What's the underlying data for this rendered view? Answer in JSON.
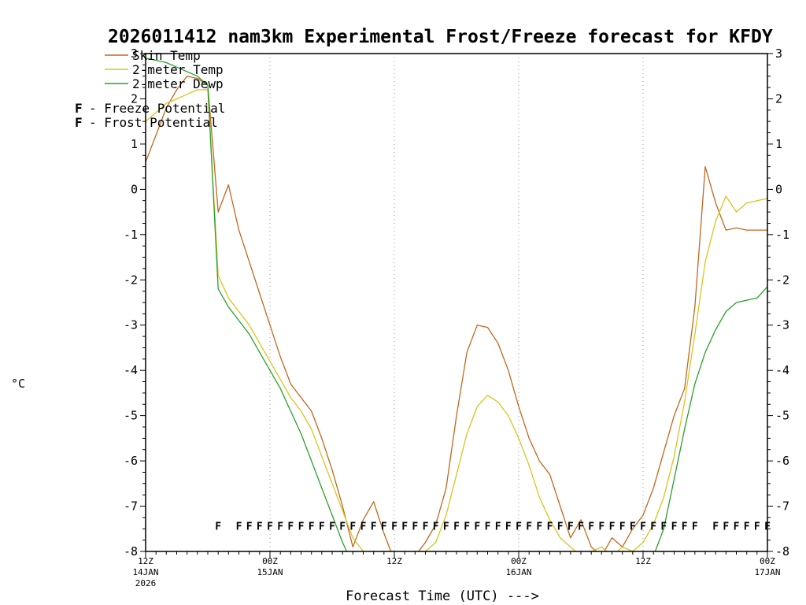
{
  "title": "2026011412 nam3km Experimental Frost/Freeze forecast for KFDY",
  "axes": {
    "y_label": "°C",
    "x_label": "Forecast Time (UTC) --->",
    "y_ticks": [
      3,
      2,
      1,
      0,
      -1,
      -2,
      -3,
      -4,
      -5,
      -6,
      -7,
      -8
    ],
    "x_major_ticks": [
      {
        "hour": 0,
        "line1": "12Z",
        "line2": "14JAN",
        "line3": "2026"
      },
      {
        "hour": 12,
        "line1": "00Z",
        "line2": "15JAN",
        "line3": ""
      },
      {
        "hour": 24,
        "line1": "12Z",
        "line2": "",
        "line3": ""
      },
      {
        "hour": 36,
        "line1": "00Z",
        "line2": "16JAN",
        "line3": ""
      },
      {
        "hour": 48,
        "line1": "12Z",
        "line2": "",
        "line3": ""
      },
      {
        "hour": 60,
        "line1": "00Z",
        "line2": "17JAN",
        "line3": ""
      }
    ]
  },
  "legend": {
    "series": [
      {
        "label": "Skin Temp",
        "color": "#c06820"
      },
      {
        "label": "2-meter Temp",
        "color": "#d9c41e"
      },
      {
        "label": "2-meter Dewp",
        "color": "#2ca02c"
      }
    ],
    "flags": [
      {
        "symbol": "F",
        "label": "- Freeze Potential",
        "color": "#d6188f"
      },
      {
        "symbol": "F",
        "label": "- Frost Potential",
        "color": "#7b68ee"
      }
    ]
  },
  "chart_data": {
    "type": "line",
    "title": "2026011412 nam3km Experimental Frost/Freeze forecast for KFDY",
    "xlabel": "Forecast Time (UTC) --->",
    "ylabel": "°C",
    "x_unit": "hours after 12Z 14JAN 2026",
    "x_range": [
      0,
      60
    ],
    "ylim": [
      -8,
      3
    ],
    "grid": "dashed vertical lines every 12 hours",
    "legend_position": "top-left inside plot",
    "series": [
      {
        "name": "Skin Temp",
        "color": "#c06820",
        "values": [
          0.6,
          1.2,
          1.8,
          2.2,
          2.5,
          2.45,
          2.3,
          -0.5,
          0.1,
          -0.9,
          -1.6,
          -2.3,
          -3.0,
          -3.7,
          -4.3,
          -4.6,
          -4.9,
          -5.5,
          -6.2,
          -7.0,
          -7.9,
          -7.3,
          -6.9,
          -7.6,
          -8.2,
          -8.3,
          -8.1,
          -7.8,
          -7.4,
          -6.6,
          -5.0,
          -3.6,
          -3.0,
          -3.05,
          -3.4,
          -4.0,
          -4.8,
          -5.5,
          -6.0,
          -6.3,
          -7.0,
          -7.7,
          -7.3,
          -7.9,
          -8.1,
          -7.7,
          -7.9,
          -7.5,
          -7.2,
          -6.6,
          -5.8,
          -5.0,
          -4.4,
          -2.6,
          0.5,
          -0.3,
          -0.9,
          -0.85,
          -0.9,
          -0.9,
          -0.9
        ]
      },
      {
        "name": "2-meter Temp",
        "color": "#d9c41e",
        "values": [
          1.5,
          1.7,
          1.9,
          2.0,
          2.1,
          2.2,
          2.2,
          -1.9,
          -2.4,
          -2.7,
          -3.0,
          -3.4,
          -3.8,
          -4.2,
          -4.6,
          -4.9,
          -5.3,
          -5.9,
          -6.5,
          -7.1,
          -7.7,
          -8.0,
          -8.3,
          -8.4,
          -8.3,
          -8.2,
          -8.2,
          -8.0,
          -7.8,
          -7.2,
          -6.3,
          -5.4,
          -4.8,
          -4.55,
          -4.7,
          -5.0,
          -5.5,
          -6.1,
          -6.8,
          -7.3,
          -7.7,
          -7.9,
          -8.1,
          -8.0,
          -7.9,
          -8.1,
          -7.9,
          -8.0,
          -7.8,
          -7.4,
          -6.8,
          -5.9,
          -4.7,
          -3.2,
          -1.6,
          -0.7,
          -0.15,
          -0.5,
          -0.3,
          -0.25,
          -0.2
        ]
      },
      {
        "name": "2-meter Dewp",
        "color": "#2ca02c",
        "values": [
          2.9,
          2.85,
          2.8,
          2.7,
          2.6,
          2.5,
          2.3,
          -2.2,
          -2.6,
          -2.9,
          -3.2,
          -3.6,
          -4.0,
          -4.4,
          -4.9,
          -5.4,
          -6.0,
          -6.6,
          -7.2,
          -7.8,
          -8.3,
          -8.6,
          -8.6,
          -8.6,
          -8.6,
          -8.6,
          -8.6,
          -8.6,
          -8.6,
          -8.6,
          -8.6,
          -8.6,
          -8.6,
          -8.6,
          -8.6,
          -8.6,
          -8.6,
          -8.6,
          -8.6,
          -8.6,
          -8.6,
          -8.6,
          -8.6,
          -8.6,
          -8.6,
          -8.6,
          -8.6,
          -8.6,
          -8.4,
          -8.1,
          -7.5,
          -6.4,
          -5.3,
          -4.3,
          -3.6,
          -3.1,
          -2.7,
          -2.5,
          -2.45,
          -2.4,
          -2.15
        ]
      }
    ],
    "freeze_flag_symbol": "F",
    "freeze_flag_color": "#d6188f",
    "freeze_flag_value": -7.45,
    "freeze_flag_hours": [
      7,
      9,
      10,
      11,
      12,
      13,
      14,
      15,
      16,
      17,
      18,
      19,
      20,
      21,
      22,
      23,
      24,
      25,
      26,
      27,
      28,
      29,
      30,
      31,
      32,
      33,
      34,
      35,
      36,
      37,
      38,
      39,
      40,
      41,
      42,
      43,
      44,
      45,
      46,
      47,
      48,
      49,
      50,
      51,
      52,
      53,
      55,
      56,
      57,
      58,
      59,
      60
    ],
    "frost_flag_hours": []
  }
}
